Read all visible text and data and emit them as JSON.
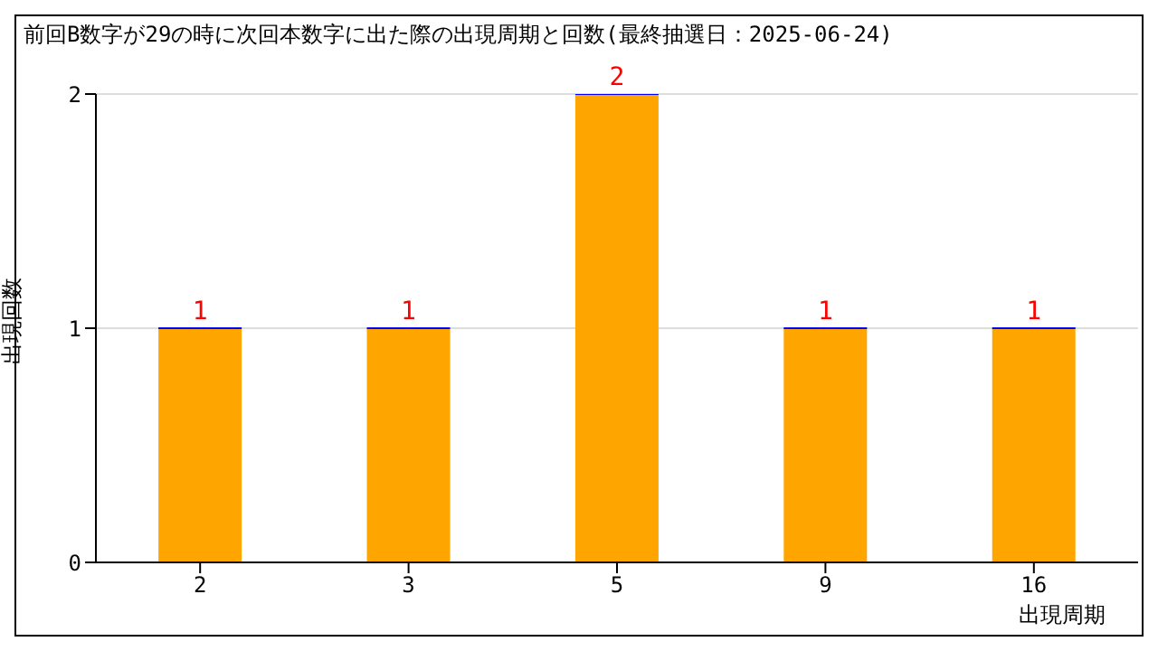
{
  "chart_data": {
    "type": "bar",
    "title": "前回B数字が29の時に次回本数字に出た際の出現周期と回数(最終抽選日：2025-06-24)",
    "xlabel": "出現周期",
    "ylabel": "出現回数",
    "categories": [
      "2",
      "3",
      "5",
      "9",
      "16"
    ],
    "values": [
      1,
      1,
      2,
      1,
      1
    ],
    "color": "#ffa500",
    "ylim": [
      0,
      2
    ],
    "yticks": [
      0,
      1,
      2
    ],
    "grid": "y",
    "data_labels": true
  }
}
